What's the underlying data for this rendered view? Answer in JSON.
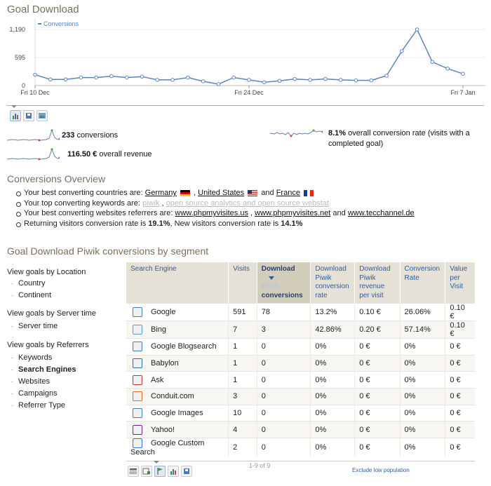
{
  "title": "Goal Download",
  "chart_data": {
    "type": "line",
    "legend": "Conversions",
    "y_ticks": [
      "1,190",
      "595",
      "0"
    ],
    "ylim": [
      0,
      1190
    ],
    "x_tick_labels": [
      "Fri 10 Dec",
      "Fri 24 Dec",
      "Fri 7 Jan"
    ],
    "x_tick_index": [
      0,
      14,
      28
    ],
    "series": [
      {
        "name": "Conversions",
        "values": [
          230,
          130,
          130,
          170,
          170,
          200,
          170,
          190,
          120,
          120,
          170,
          90,
          30,
          170,
          120,
          70,
          100,
          140,
          120,
          140,
          120,
          110,
          110,
          210,
          730,
          1190,
          500,
          360,
          250
        ]
      }
    ]
  },
  "chart_icons": [
    "evolution-graph-icon",
    "export-icon",
    "image-icon"
  ],
  "sparklines": {
    "conversions": {
      "value": "233",
      "label": " conversions"
    },
    "rate": {
      "value": "8.1%",
      "label": " overall conversion rate (visits with a completed goal)"
    },
    "revenue": {
      "value": "116.50 €",
      "label": " overall revenue"
    }
  },
  "overview": {
    "heading": "Conversions Overview",
    "countries_prefix": "Your best converting countries are: ",
    "countries": [
      "Germany",
      "United States",
      "France"
    ],
    "and": " and ",
    "sep": " , ",
    "keywords_prefix": "Your top converting keywords are: ",
    "keywords": [
      "piwik",
      "open source analytics and open source webstat"
    ],
    "websites_prefix": "Your best converting websites referrers are: ",
    "websites": [
      "www.phpmyvisites.us",
      "www.phpmyvisites.net",
      "www.tecchannel.de"
    ],
    "returning_prefix": "Returning visitors conversion rate is ",
    "returning_rate": "19.1%",
    "new_prefix": ", New visitors conversion rate is ",
    "new_rate": "14.1%"
  },
  "segment_heading": "Goal Download Piwik conversions by segment",
  "nav": {
    "location_title": "View goals by Location",
    "location_items": [
      "Country",
      "Continent"
    ],
    "server_title": "View goals by Server time",
    "server_items": [
      "Server time"
    ],
    "referrers_title": "View goals by Referrers",
    "referrers_items": [
      "Keywords",
      "Search Engines",
      "Websites",
      "Campaigns",
      "Referrer Type"
    ]
  },
  "table": {
    "headers": {
      "label": "Search Engine",
      "visits": "Visits",
      "conv_a": "Download",
      "conv_b": "Piwik",
      "conv_c": "conversions",
      "rate": "Download Piwik conversion rate",
      "revenue": "Download Piwik revenue per visit",
      "conv_rate": "Conversion Rate",
      "value": "Value per Visit"
    },
    "rows": [
      {
        "label": "Google",
        "visits": "591",
        "conv": "78",
        "rate": "13.2%",
        "rev": "0.10 €",
        "cr": "26.06%",
        "vpv": "0.10 €",
        "color": "#3a7be0"
      },
      {
        "label": "Bing",
        "visits": "7",
        "conv": "3",
        "rate": "42.86%",
        "rev": "0.20 €",
        "cr": "57.14%",
        "vpv": "0.10 €",
        "color": "#4aa3df"
      },
      {
        "label": "Google Blogsearch",
        "visits": "1",
        "conv": "0",
        "rate": "0%",
        "rev": "0 €",
        "cr": "0%",
        "vpv": "0 €",
        "color": "#3a7be0"
      },
      {
        "label": "Babylon",
        "visits": "1",
        "conv": "0",
        "rate": "0%",
        "rev": "0 €",
        "cr": "0%",
        "vpv": "0 €",
        "color": "#2a6cb0"
      },
      {
        "label": "Ask",
        "visits": "1",
        "conv": "0",
        "rate": "0%",
        "rev": "0 €",
        "cr": "0%",
        "vpv": "0 €",
        "color": "#d02c2c"
      },
      {
        "label": "Conduit.com",
        "visits": "3",
        "conv": "0",
        "rate": "0%",
        "rev": "0 €",
        "cr": "0%",
        "vpv": "0 €",
        "color": "#e46a1c"
      },
      {
        "label": "Google Images",
        "visits": "10",
        "conv": "0",
        "rate": "0%",
        "rev": "0 €",
        "cr": "0%",
        "vpv": "0 €",
        "color": "#3a7be0"
      },
      {
        "label": "Yahoo!",
        "visits": "4",
        "conv": "0",
        "rate": "0%",
        "rev": "0 €",
        "cr": "0%",
        "vpv": "0 €",
        "color": "#7b1fa2"
      },
      {
        "label": "Google Custom Search",
        "visits": "2",
        "conv": "0",
        "rate": "0%",
        "rev": "0 €",
        "cr": "0%",
        "vpv": "0 €",
        "color": "#3a7be0"
      }
    ],
    "pagination": "1-9 of 9",
    "exclude_low": "Exclude low population"
  },
  "footer_icons": [
    "table-icon",
    "table-more-icon",
    "goal-flag-icon",
    "bar-chart-icon",
    "export-icon"
  ]
}
